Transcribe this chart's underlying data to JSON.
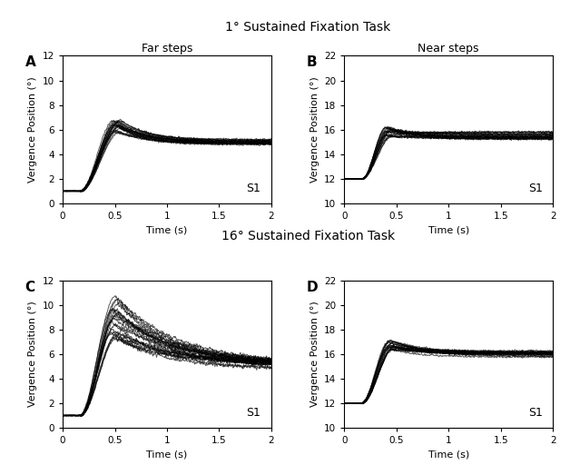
{
  "title_top": "1° Sustained Fixation Task",
  "title_bottom": "16° Sustained Fixation Task",
  "col_labels": [
    "Far steps",
    "Near steps"
  ],
  "panel_labels": [
    "A",
    "B",
    "C",
    "D"
  ],
  "s1_label": "S1",
  "xlabel": "Time (s)",
  "ylabel": "Vergence Position (°)",
  "xlim": [
    0,
    2
  ],
  "ylim_left": [
    0,
    12
  ],
  "ylim_right": [
    10,
    22
  ],
  "yticks_left": [
    0,
    2,
    4,
    6,
    8,
    10,
    12
  ],
  "yticks_right": [
    10,
    12,
    14,
    16,
    18,
    20,
    22
  ],
  "xticks": [
    0,
    0.5,
    1,
    1.5,
    2
  ],
  "xtick_labels": [
    "0",
    "0.5",
    "1",
    "1.5",
    "2"
  ],
  "n_traces": 20,
  "dt": 0.005,
  "t_end": 2.0,
  "line_color": "#000000",
  "line_alpha": 0.65,
  "line_width": 0.7,
  "fig_facecolor": "#ffffff",
  "axes_facecolor": "#ffffff"
}
